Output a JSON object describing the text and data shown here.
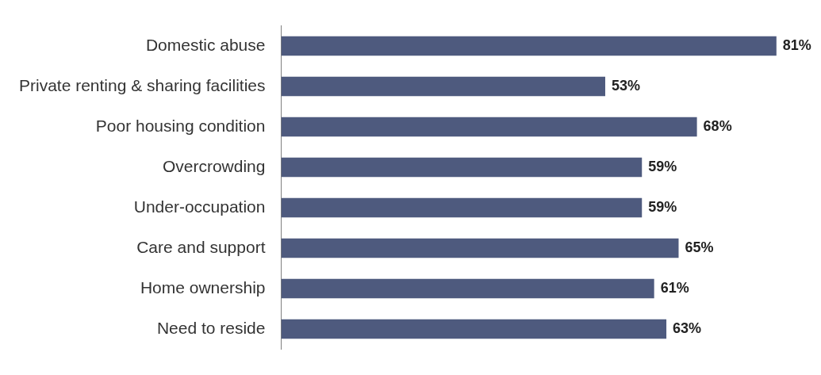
{
  "chart_data": {
    "type": "bar",
    "orientation": "horizontal",
    "categories": [
      "Domestic abuse",
      "Private renting & sharing facilities",
      "Poor housing condition",
      "Overcrowding",
      "Under-occupation",
      "Care and support",
      "Home ownership",
      "Need to reside"
    ],
    "values": [
      81,
      53,
      68,
      59,
      59,
      65,
      61,
      63
    ],
    "value_labels": [
      "81%",
      "53%",
      "68%",
      "59%",
      "59%",
      "65%",
      "61%",
      "63%"
    ],
    "color": "#4e5a7e"
  }
}
